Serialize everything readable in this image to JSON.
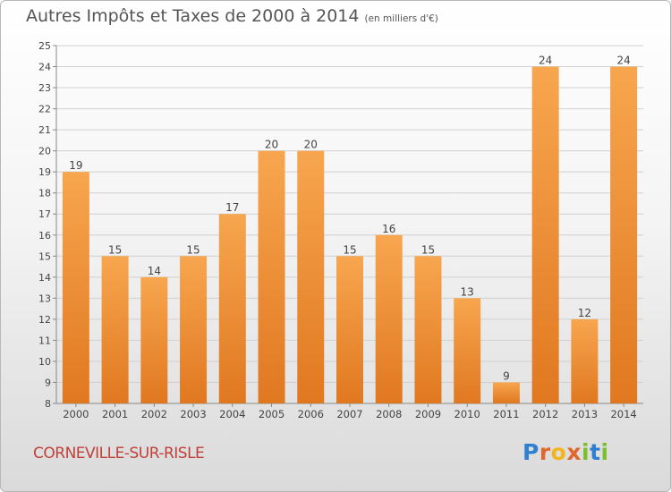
{
  "title": "Autres Impôts et Taxes de 2000 à 2014",
  "subtitle": "(en milliers d'€)",
  "commune": "CORNEVILLE-SUR-RISLE",
  "brand": {
    "letters": [
      "P",
      "r",
      "o",
      "x",
      "i",
      "t",
      "i"
    ]
  },
  "colors": {
    "bar_top": "#f7a64f",
    "bar_bottom": "#e07820",
    "grid": "#d0d0d0",
    "axis": "#888888",
    "text": "#444444"
  },
  "chart_data": {
    "type": "bar",
    "categories": [
      "2000",
      "2001",
      "2002",
      "2003",
      "2004",
      "2005",
      "2006",
      "2007",
      "2008",
      "2009",
      "2010",
      "2011",
      "2012",
      "2013",
      "2014"
    ],
    "values": [
      19,
      15,
      14,
      15,
      17,
      20,
      20,
      15,
      16,
      15,
      13,
      9,
      24,
      12,
      24
    ],
    "data_labels": [
      "19",
      "15",
      "14",
      "15",
      "17",
      "20",
      "20",
      "15",
      "16",
      "15",
      "13",
      "9",
      "24",
      "12",
      "24"
    ],
    "y_ticks": [
      "8",
      "9",
      "10",
      "11",
      "12",
      "13",
      "14",
      "15",
      "16",
      "17",
      "18",
      "19",
      "20",
      "21",
      "22",
      "23",
      "24",
      "25"
    ],
    "ylim": [
      8,
      25
    ],
    "grid": true,
    "title": "Autres Impôts et Taxes de 2000 à 2014",
    "xlabel": "",
    "ylabel": ""
  }
}
